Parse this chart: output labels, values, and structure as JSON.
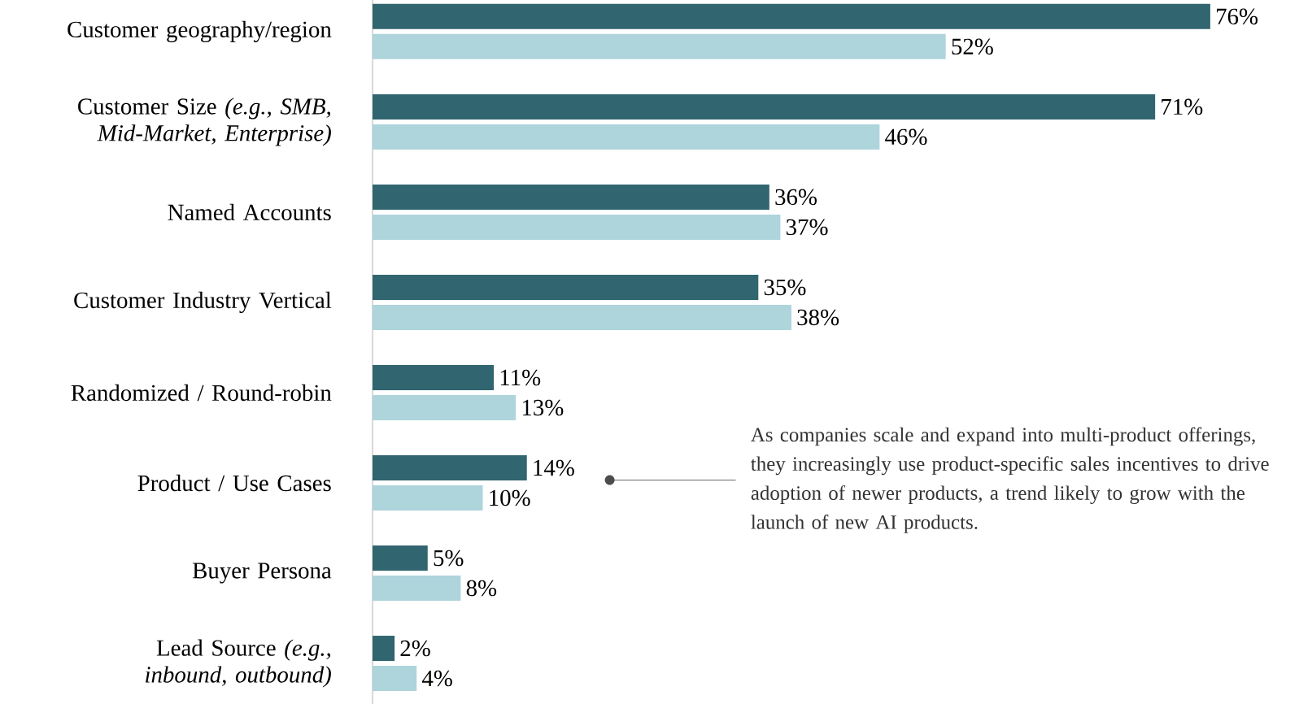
{
  "chart_data": {
    "type": "bar",
    "orientation": "horizontal",
    "categories": [
      "Customer geography/region",
      "Customer Size *(e.g., SMB, Mid-Market, Enterprise)*",
      "Named Accounts",
      "Customer Industry Vertical",
      "Randomized / Round-robin",
      "Product / Use Cases",
      "Buyer Persona",
      "Lead Source *(e.g., inbound, outbound)*"
    ],
    "series": [
      {
        "color": "#31656f",
        "values": [
          76,
          71,
          36,
          35,
          11,
          14,
          5,
          2
        ],
        "value_labels": [
          "76%",
          "71%",
          "36%",
          "35%",
          "11%",
          "14%",
          "5%",
          "2%"
        ]
      },
      {
        "color": "#aed4dc",
        "values": [
          52,
          46,
          37,
          38,
          13,
          10,
          8,
          4
        ],
        "value_labels": [
          "52%",
          "46%",
          "37%",
          "38%",
          "13%",
          "10%",
          "8%",
          "4%"
        ]
      }
    ],
    "annotations": [
      "As companies scale and expand into multi-product offerings, they increasingly use product-specific sales incentives to drive adoption of newer products, a trend likely to grow with the launch of new AI products."
    ]
  }
}
